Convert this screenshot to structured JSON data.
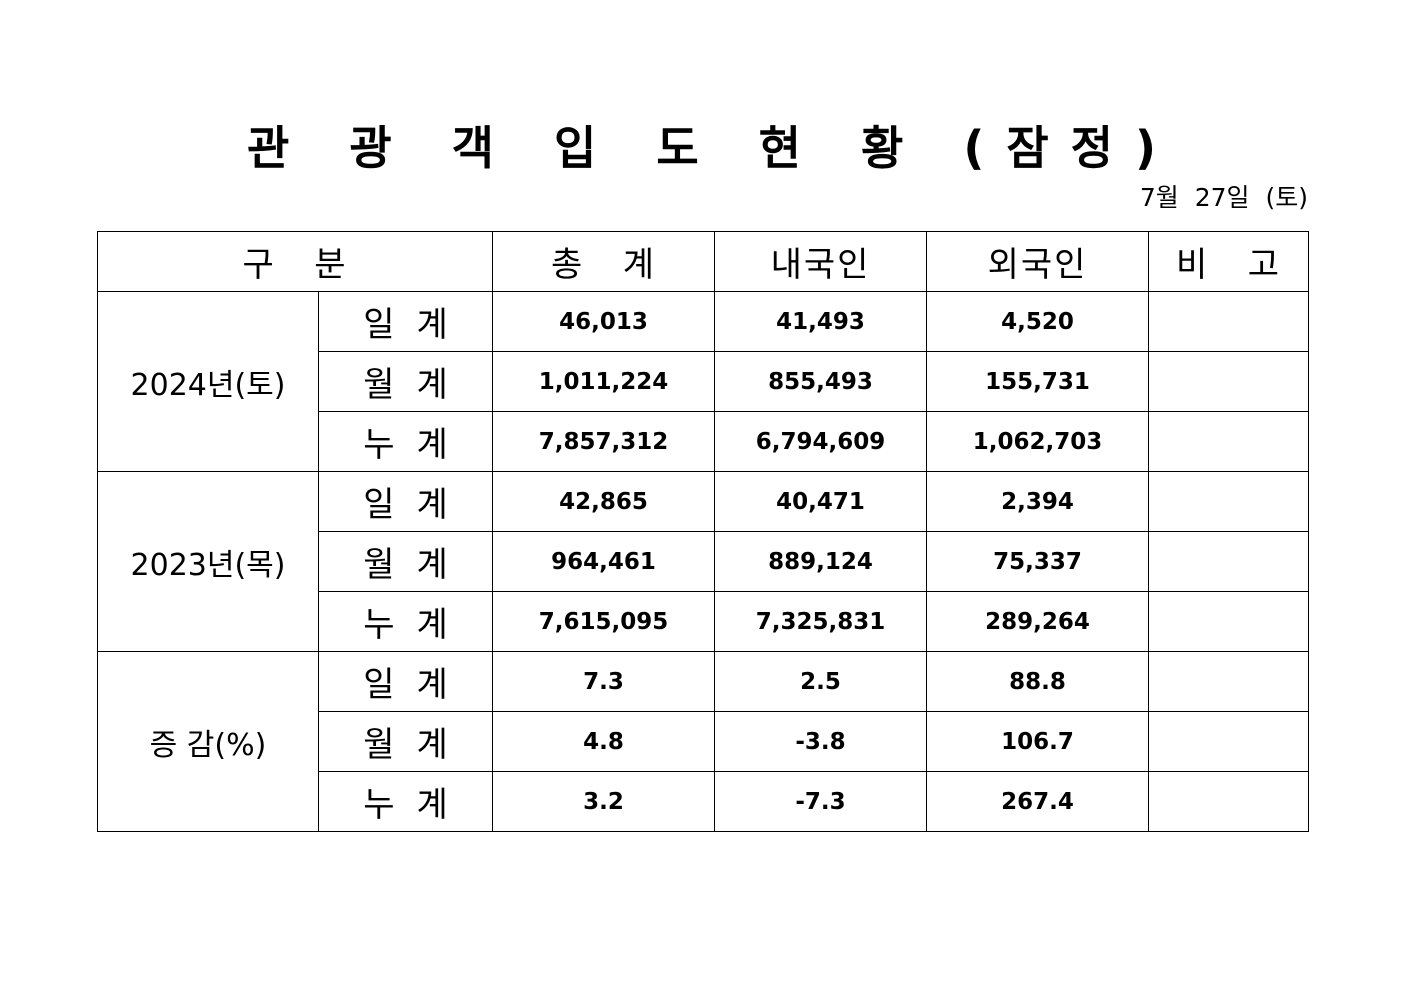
{
  "title": "관 광 객 입 도 현 황 (잠정)",
  "date": "7월 27일 (토)",
  "headers": [
    "구   분",
    "총   계",
    "내국인",
    "외국인",
    "비   고"
  ],
  "groups": [
    {
      "label": "2024년(토)",
      "rows": [
        {
          "type": "일계",
          "total": "46,013",
          "domestic": "41,493",
          "foreign": "4,520",
          "note": ""
        },
        {
          "type": "월계",
          "total": "1,011,224",
          "domestic": "855,493",
          "foreign": "155,731",
          "note": ""
        },
        {
          "type": "누계",
          "total": "7,857,312",
          "domestic": "6,794,609",
          "foreign": "1,062,703",
          "note": ""
        }
      ]
    },
    {
      "label": "2023년(목)",
      "rows": [
        {
          "type": "일계",
          "total": "42,865",
          "domestic": "40,471",
          "foreign": "2,394",
          "note": ""
        },
        {
          "type": "월계",
          "total": "964,461",
          "domestic": "889,124",
          "foreign": "75,337",
          "note": ""
        },
        {
          "type": "누계",
          "total": "7,615,095",
          "domestic": "7,325,831",
          "foreign": "289,264",
          "note": ""
        }
      ]
    },
    {
      "label": "증 감(%)",
      "rows": [
        {
          "type": "일계",
          "total": "7.3",
          "domestic": "2.5",
          "foreign": "88.8",
          "note": ""
        },
        {
          "type": "월계",
          "total": "4.8",
          "domestic": "-3.8",
          "foreign": "106.7",
          "note": ""
        },
        {
          "type": "누계",
          "total": "3.2",
          "domestic": "-7.3",
          "foreign": "267.4",
          "note": ""
        }
      ]
    }
  ]
}
